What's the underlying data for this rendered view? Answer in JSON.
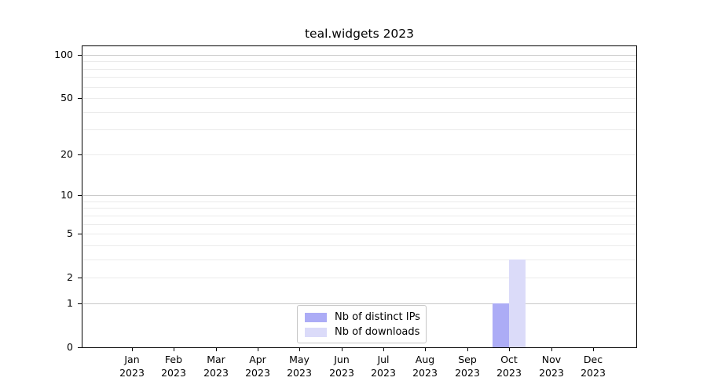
{
  "title": "teal.widgets 2023",
  "colors": {
    "distinct_ips": "#acacf6",
    "downloads": "#dbdbf9",
    "grid_major": "#c8c8c8",
    "grid_minor": "#ebebeb",
    "axis": "#000000"
  },
  "legend": {
    "items": [
      {
        "label": "Nb of distinct IPs",
        "color_key": "distinct_ips"
      },
      {
        "label": "Nb of downloads",
        "color_key": "downloads"
      }
    ]
  },
  "chart_data": {
    "type": "bar",
    "title": "teal.widgets 2023",
    "categories": [
      "Jan 2023",
      "Feb 2023",
      "Mar 2023",
      "Apr 2023",
      "May 2023",
      "Jun 2023",
      "Jul 2023",
      "Aug 2023",
      "Sep 2023",
      "Oct 2023",
      "Nov 2023",
      "Dec 2023"
    ],
    "series": [
      {
        "name": "Nb of distinct IPs",
        "color_key": "distinct_ips",
        "values": [
          0,
          0,
          0,
          0,
          0,
          0,
          0,
          0,
          0,
          1,
          0,
          0
        ]
      },
      {
        "name": "Nb of downloads",
        "color_key": "downloads",
        "values": [
          0,
          0,
          0,
          0,
          0,
          0,
          0,
          0,
          0,
          3,
          0,
          0
        ]
      }
    ],
    "xlabel": "",
    "ylabel": "",
    "yscale": "log10(1+x)",
    "ylim": [
      0,
      116
    ],
    "yticks": [
      0,
      1,
      2,
      5,
      10,
      20,
      50,
      100
    ],
    "minor_gridlines": [
      3,
      4,
      6,
      7,
      8,
      9,
      30,
      40,
      60,
      70,
      80,
      90
    ],
    "major_gridlines": [
      1,
      10,
      100
    ],
    "grid": "horizontal only",
    "legend_position": "bottom center inside plot"
  }
}
